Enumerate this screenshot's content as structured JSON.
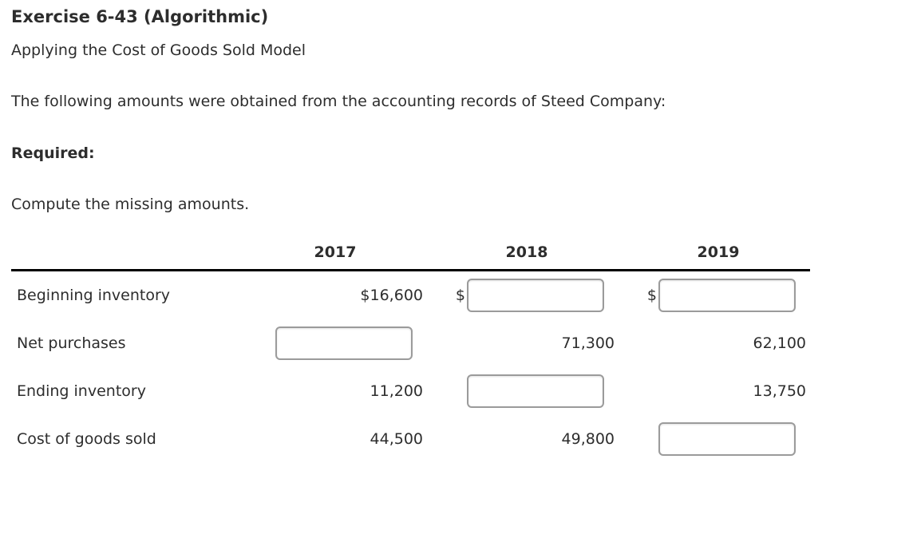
{
  "page": {
    "title": "Exercise 6-43 (Algorithmic)",
    "subtitle": "Applying the Cost of Goods Sold Model",
    "intro": "The following amounts were obtained from the accounting records of Steed Company:",
    "required_label": "Required:",
    "instruction": "Compute the missing amounts."
  },
  "table": {
    "columns": [
      "2017",
      "2018",
      "2019"
    ],
    "rows": [
      {
        "label": "Beginning inventory",
        "cells": [
          {
            "type": "text",
            "value": "$16,600"
          },
          {
            "type": "input",
            "prefix": "$",
            "value": ""
          },
          {
            "type": "input",
            "prefix": "$",
            "value": ""
          }
        ]
      },
      {
        "label": "Net purchases",
        "cells": [
          {
            "type": "input",
            "value": ""
          },
          {
            "type": "text",
            "value": "71,300"
          },
          {
            "type": "text",
            "value": "62,100"
          }
        ]
      },
      {
        "label": "Ending inventory",
        "cells": [
          {
            "type": "text",
            "value": "11,200"
          },
          {
            "type": "input",
            "value": ""
          },
          {
            "type": "text",
            "value": "13,750"
          }
        ]
      },
      {
        "label": "Cost of goods sold",
        "cells": [
          {
            "type": "text",
            "value": "44,500"
          },
          {
            "type": "text",
            "value": "49,800"
          },
          {
            "type": "input",
            "value": ""
          }
        ]
      }
    ]
  },
  "colors": {
    "text": "#2d2d2d",
    "input_border": "#9b9b9b",
    "header_rule": "#000000",
    "background": "#ffffff"
  }
}
